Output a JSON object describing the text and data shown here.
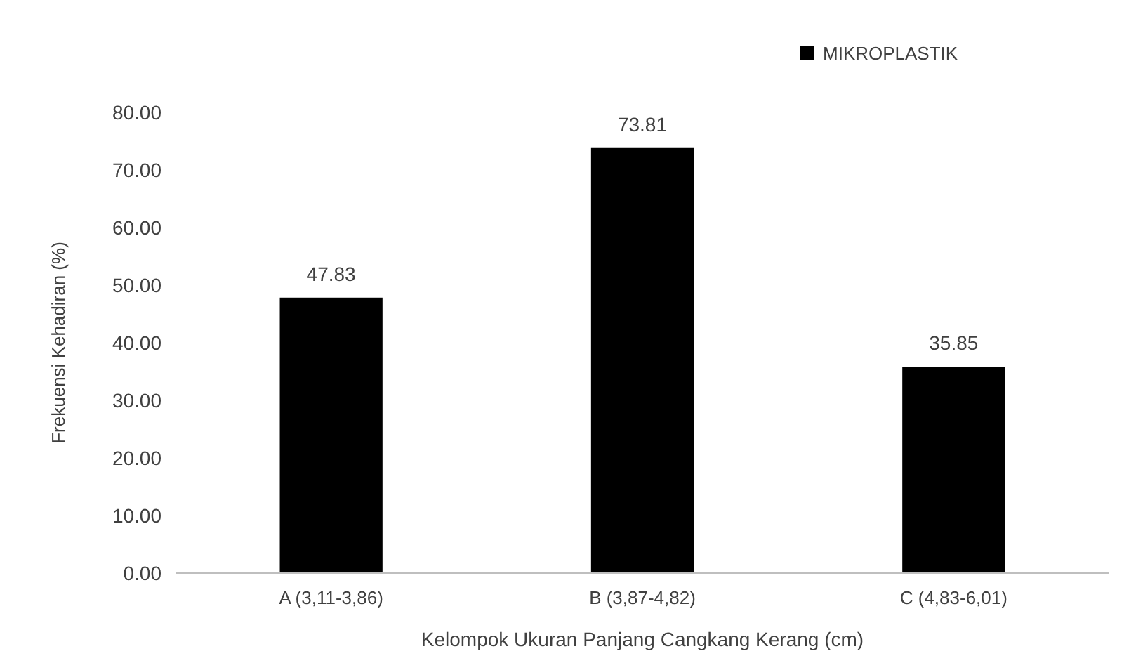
{
  "chart_data": {
    "type": "bar",
    "xlabel": "Kelompok Ukuran Panjang Cangkang Kerang (cm)",
    "ylabel": "Frekuensi Kehadiran (%)",
    "categories": [
      "A (3,11-3,86)",
      "B (3,87-4,82)",
      "C (4,83-6,01)"
    ],
    "series": [
      {
        "name": "MIKROPLASTIK",
        "color": "#000000",
        "values": [
          47.83,
          73.81,
          35.85
        ]
      }
    ],
    "ylim": [
      0,
      80
    ],
    "yticks": [
      {
        "value": 0,
        "label": "0.00"
      },
      {
        "value": 10,
        "label": "10.00"
      },
      {
        "value": 20,
        "label": "20.00"
      },
      {
        "value": 30,
        "label": "30.00"
      },
      {
        "value": 40,
        "label": "40.00"
      },
      {
        "value": 50,
        "label": "50.00"
      },
      {
        "value": 60,
        "label": "60.00"
      },
      {
        "value": 70,
        "label": "70.00"
      },
      {
        "value": 80,
        "label": "80.00"
      }
    ],
    "data_labels": true,
    "legend": "top right",
    "grid": false
  }
}
